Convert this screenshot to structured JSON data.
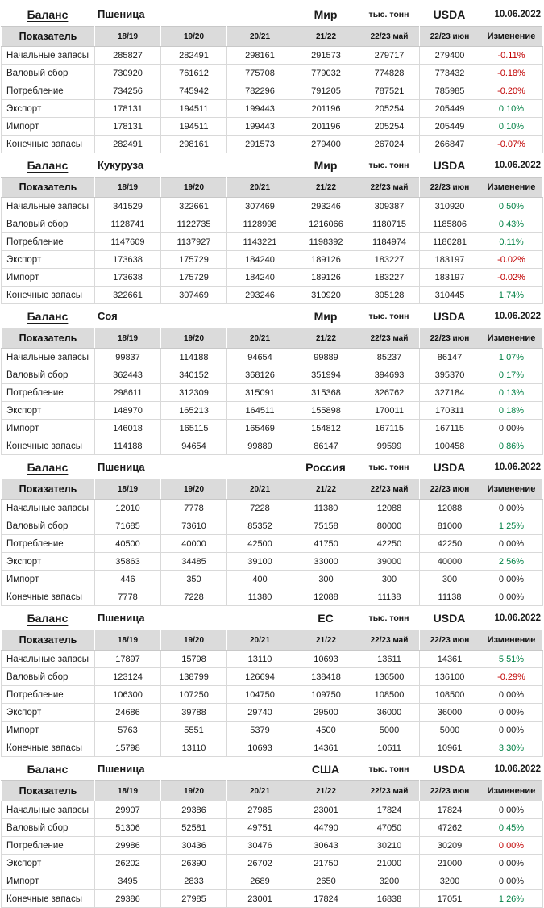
{
  "report_date": "10.06.2022",
  "columns": [
    "Показатель",
    "18/19",
    "19/20",
    "20/21",
    "21/22",
    "22/23 май",
    "22/23 июн",
    "Изменение"
  ],
  "colors": {
    "positive": "#008044",
    "negative": "#C00000",
    "neutral": "#1a1a1a"
  },
  "tables": [
    {
      "title": {
        "balance": "Баланс",
        "commodity": "Пшеница",
        "region": "Мир",
        "units": "тыс. тонн",
        "source": "USDA",
        "date": "10.06.2022"
      },
      "rows": [
        {
          "label": "Начальные запасы",
          "values": [
            "285827",
            "282491",
            "298161",
            "291573",
            "279717",
            "279400"
          ],
          "change": "-0.11%",
          "change_tone": "negative"
        },
        {
          "label": "Валовый сбор",
          "values": [
            "730920",
            "761612",
            "775708",
            "779032",
            "774828",
            "773432"
          ],
          "change": "-0.18%",
          "change_tone": "negative"
        },
        {
          "label": "Потребление",
          "values": [
            "734256",
            "745942",
            "782296",
            "791205",
            "787521",
            "785985"
          ],
          "change": "-0.20%",
          "change_tone": "negative"
        },
        {
          "label": "Экспорт",
          "values": [
            "178131",
            "194511",
            "199443",
            "201196",
            "205254",
            "205449"
          ],
          "change": "0.10%",
          "change_tone": "positive"
        },
        {
          "label": "Импорт",
          "values": [
            "178131",
            "194511",
            "199443",
            "201196",
            "205254",
            "205449"
          ],
          "change": "0.10%",
          "change_tone": "positive"
        },
        {
          "label": "Конечные запасы",
          "values": [
            "282491",
            "298161",
            "291573",
            "279400",
            "267024",
            "266847"
          ],
          "change": "-0.07%",
          "change_tone": "negative"
        }
      ]
    },
    {
      "title": {
        "balance": "Баланс",
        "commodity": "Кукуруза",
        "region": "Мир",
        "units": "тыс. тонн",
        "source": "USDA",
        "date": "10.06.2022"
      },
      "rows": [
        {
          "label": "Начальные запасы",
          "values": [
            "341529",
            "322661",
            "307469",
            "293246",
            "309387",
            "310920"
          ],
          "change": "0.50%",
          "change_tone": "positive"
        },
        {
          "label": "Валовый сбор",
          "values": [
            "1128741",
            "1122735",
            "1128998",
            "1216066",
            "1180715",
            "1185806"
          ],
          "change": "0.43%",
          "change_tone": "positive"
        },
        {
          "label": "Потребление",
          "values": [
            "1147609",
            "1137927",
            "1143221",
            "1198392",
            "1184974",
            "1186281"
          ],
          "change": "0.11%",
          "change_tone": "positive"
        },
        {
          "label": "Экспорт",
          "values": [
            "173638",
            "175729",
            "184240",
            "189126",
            "183227",
            "183197"
          ],
          "change": "-0.02%",
          "change_tone": "negative"
        },
        {
          "label": "Импорт",
          "values": [
            "173638",
            "175729",
            "184240",
            "189126",
            "183227",
            "183197"
          ],
          "change": "-0.02%",
          "change_tone": "negative"
        },
        {
          "label": "Конечные запасы",
          "values": [
            "322661",
            "307469",
            "293246",
            "310920",
            "305128",
            "310445"
          ],
          "change": "1.74%",
          "change_tone": "positive"
        }
      ]
    },
    {
      "title": {
        "balance": "Баланс",
        "commodity": "Соя",
        "region": "Мир",
        "units": "тыс. тонн",
        "source": "USDA",
        "date": "10.06.2022"
      },
      "rows": [
        {
          "label": "Начальные запасы",
          "values": [
            "99837",
            "114188",
            "94654",
            "99889",
            "85237",
            "86147"
          ],
          "change": "1.07%",
          "change_tone": "positive"
        },
        {
          "label": "Валовый сбор",
          "values": [
            "362443",
            "340152",
            "368126",
            "351994",
            "394693",
            "395370"
          ],
          "change": "0.17%",
          "change_tone": "positive"
        },
        {
          "label": "Потребление",
          "values": [
            "298611",
            "312309",
            "315091",
            "315368",
            "326762",
            "327184"
          ],
          "change": "0.13%",
          "change_tone": "positive"
        },
        {
          "label": "Экспорт",
          "values": [
            "148970",
            "165213",
            "164511",
            "155898",
            "170011",
            "170311"
          ],
          "change": "0.18%",
          "change_tone": "positive"
        },
        {
          "label": "Импорт",
          "values": [
            "146018",
            "165115",
            "165469",
            "154812",
            "167115",
            "167115"
          ],
          "change": "0.00%",
          "change_tone": "neutral"
        },
        {
          "label": "Конечные запасы",
          "values": [
            "114188",
            "94654",
            "99889",
            "86147",
            "99599",
            "100458"
          ],
          "change": "0.86%",
          "change_tone": "positive"
        }
      ]
    },
    {
      "title": {
        "balance": "Баланс",
        "commodity": "Пшеница",
        "region": "Россия",
        "units": "тыс. тонн",
        "source": "USDA",
        "date": "10.06.2022"
      },
      "rows": [
        {
          "label": "Начальные запасы",
          "values": [
            "12010",
            "7778",
            "7228",
            "11380",
            "12088",
            "12088"
          ],
          "change": "0.00%",
          "change_tone": "neutral"
        },
        {
          "label": "Валовый сбор",
          "values": [
            "71685",
            "73610",
            "85352",
            "75158",
            "80000",
            "81000"
          ],
          "change": "1.25%",
          "change_tone": "positive"
        },
        {
          "label": "Потребление",
          "values": [
            "40500",
            "40000",
            "42500",
            "41750",
            "42250",
            "42250"
          ],
          "change": "0.00%",
          "change_tone": "neutral"
        },
        {
          "label": "Экспорт",
          "values": [
            "35863",
            "34485",
            "39100",
            "33000",
            "39000",
            "40000"
          ],
          "change": "2.56%",
          "change_tone": "positive"
        },
        {
          "label": "Импорт",
          "values": [
            "446",
            "350",
            "400",
            "300",
            "300",
            "300"
          ],
          "change": "0.00%",
          "change_tone": "neutral"
        },
        {
          "label": "Конечные запасы",
          "values": [
            "7778",
            "7228",
            "11380",
            "12088",
            "11138",
            "11138"
          ],
          "change": "0.00%",
          "change_tone": "neutral"
        }
      ]
    },
    {
      "title": {
        "balance": "Баланс",
        "commodity": "Пшеница",
        "region": "ЕС",
        "units": "тыс. тонн",
        "source": "USDA",
        "date": "10.06.2022"
      },
      "rows": [
        {
          "label": "Начальные запасы",
          "values": [
            "17897",
            "15798",
            "13110",
            "10693",
            "13611",
            "14361"
          ],
          "change": "5.51%",
          "change_tone": "positive"
        },
        {
          "label": "Валовый сбор",
          "values": [
            "123124",
            "138799",
            "126694",
            "138418",
            "136500",
            "136100"
          ],
          "change": "-0.29%",
          "change_tone": "negative"
        },
        {
          "label": "Потребление",
          "values": [
            "106300",
            "107250",
            "104750",
            "109750",
            "108500",
            "108500"
          ],
          "change": "0.00%",
          "change_tone": "neutral"
        },
        {
          "label": "Экспорт",
          "values": [
            "24686",
            "39788",
            "29740",
            "29500",
            "36000",
            "36000"
          ],
          "change": "0.00%",
          "change_tone": "neutral"
        },
        {
          "label": "Импорт",
          "values": [
            "5763",
            "5551",
            "5379",
            "4500",
            "5000",
            "5000"
          ],
          "change": "0.00%",
          "change_tone": "neutral"
        },
        {
          "label": "Конечные запасы",
          "values": [
            "15798",
            "13110",
            "10693",
            "14361",
            "10611",
            "10961"
          ],
          "change": "3.30%",
          "change_tone": "positive"
        }
      ]
    },
    {
      "title": {
        "balance": "Баланс",
        "commodity": "Пшеница",
        "region": "США",
        "units": "тыс. тонн",
        "source": "USDA",
        "date": "10.06.2022"
      },
      "rows": [
        {
          "label": "Начальные запасы",
          "values": [
            "29907",
            "29386",
            "27985",
            "23001",
            "17824",
            "17824"
          ],
          "change": "0.00%",
          "change_tone": "neutral"
        },
        {
          "label": "Валовый сбор",
          "values": [
            "51306",
            "52581",
            "49751",
            "44790",
            "47050",
            "47262"
          ],
          "change": "0.45%",
          "change_tone": "positive"
        },
        {
          "label": "Потребление",
          "values": [
            "29986",
            "30436",
            "30476",
            "30643",
            "30210",
            "30209"
          ],
          "change": "0.00%",
          "change_tone": "negative"
        },
        {
          "label": "Экспорт",
          "values": [
            "26202",
            "26390",
            "26702",
            "21750",
            "21000",
            "21000"
          ],
          "change": "0.00%",
          "change_tone": "neutral"
        },
        {
          "label": "Импорт",
          "values": [
            "3495",
            "2833",
            "2689",
            "2650",
            "3200",
            "3200"
          ],
          "change": "0.00%",
          "change_tone": "neutral"
        },
        {
          "label": "Конечные запасы",
          "values": [
            "29386",
            "27985",
            "23001",
            "17824",
            "16838",
            "17051"
          ],
          "change": "1.26%",
          "change_tone": "positive"
        }
      ]
    }
  ]
}
